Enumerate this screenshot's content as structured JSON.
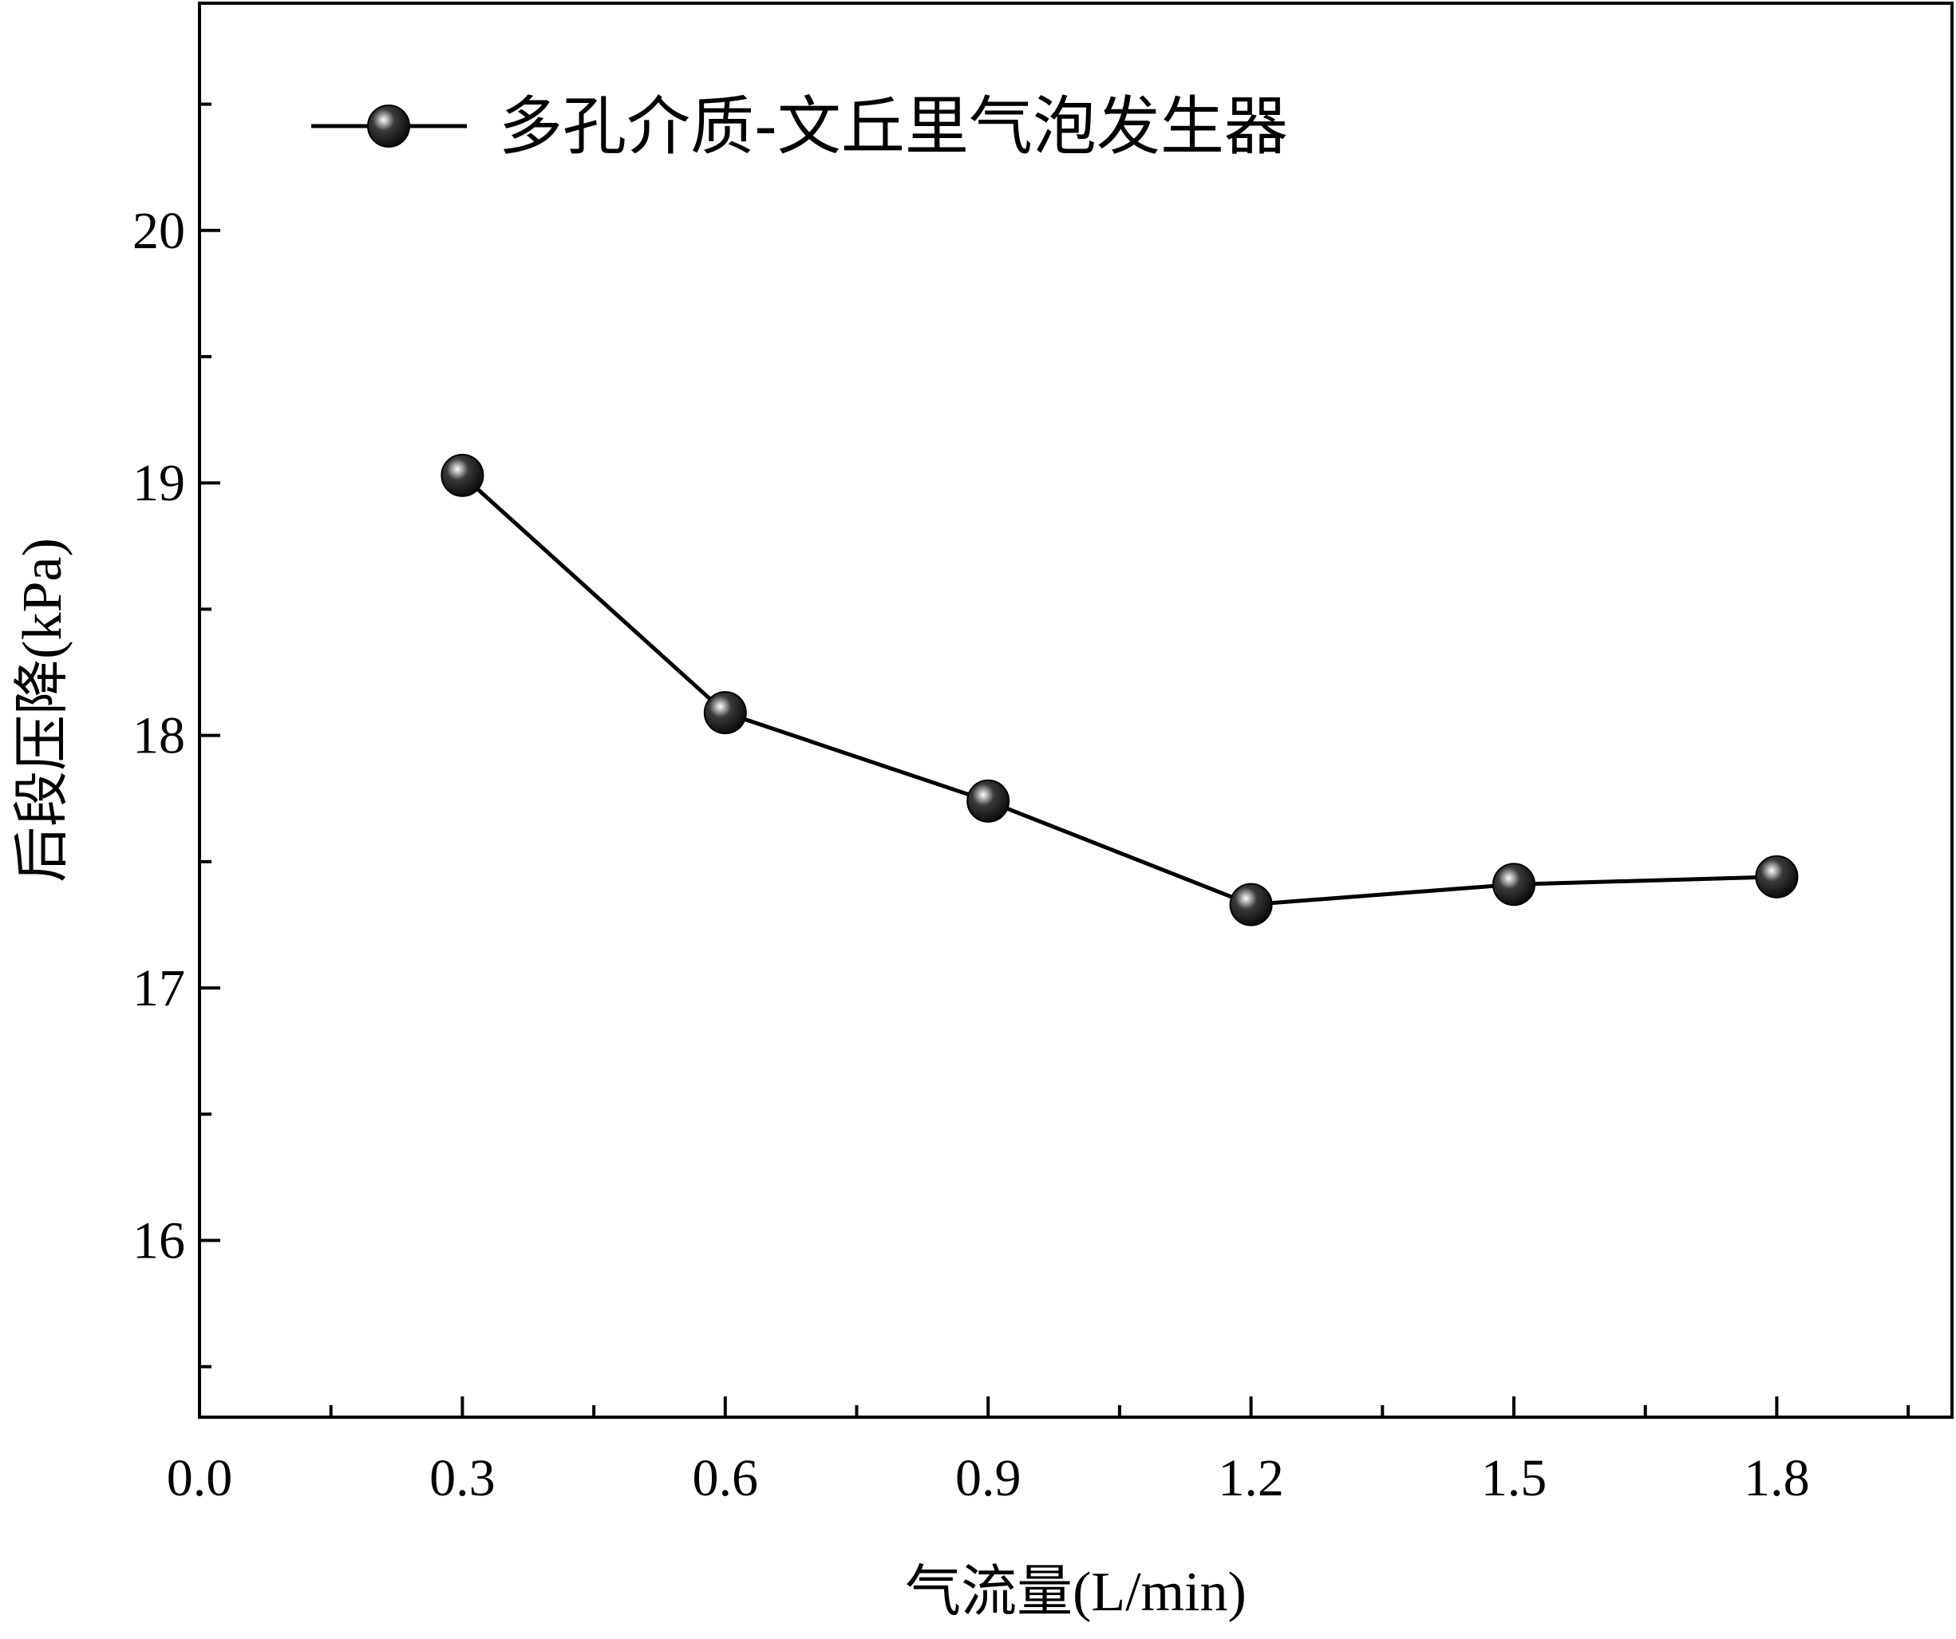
{
  "chart_data": {
    "type": "line",
    "title": "",
    "xlabel": "气流量(L/min)",
    "ylabel": "后段压降(kPa)",
    "xlim": [
      0.0,
      2.0
    ],
    "ylim": [
      15.3,
      20.9
    ],
    "x_ticks": [
      0.0,
      0.3,
      0.6,
      0.9,
      1.2,
      1.5,
      1.8
    ],
    "x_tick_labels": [
      "0.0",
      "0.3",
      "0.6",
      "0.9",
      "1.2",
      "1.5",
      "1.8"
    ],
    "y_ticks": [
      16,
      17,
      18,
      19,
      20
    ],
    "y_tick_labels": [
      "16",
      "17",
      "18",
      "19",
      "20"
    ],
    "grid": false,
    "legend_position": "top-left",
    "series": [
      {
        "name": "多孔介质-文丘里气泡发生器",
        "color": "#000000",
        "marker": "sphere",
        "x": [
          0.3,
          0.6,
          0.9,
          1.2,
          1.5,
          1.8
        ],
        "y": [
          19.03,
          18.09,
          17.74,
          17.33,
          17.41,
          17.44
        ]
      }
    ]
  }
}
